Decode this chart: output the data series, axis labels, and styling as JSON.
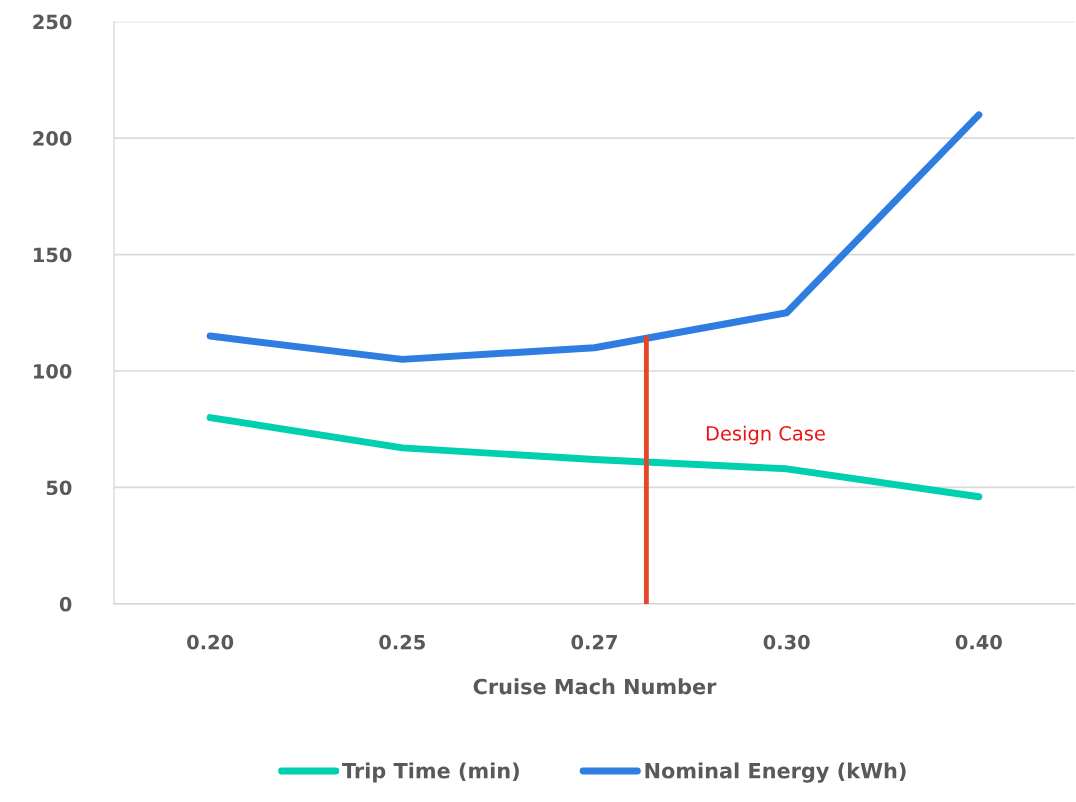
{
  "chart_data": {
    "type": "line",
    "xlabel": "Cruise Mach Number",
    "categories": [
      "0.20",
      "0.25",
      "0.27",
      "0.30",
      "0.40"
    ],
    "ylim": [
      0,
      250
    ],
    "yticks": [
      0,
      50,
      100,
      150,
      200,
      250
    ],
    "series": [
      {
        "name": "Trip Time (min)",
        "color": "#00d0b0",
        "values": [
          80,
          67,
          62,
          58,
          46
        ]
      },
      {
        "name": "Nominal Energy (kWh)",
        "color": "#2f7de1",
        "values": [
          115,
          105,
          110,
          125,
          210
        ]
      }
    ],
    "annotations": [
      "Design Case"
    ],
    "grid": "y",
    "legend": "bottom",
    "marker": "none",
    "line_style": "solid"
  }
}
